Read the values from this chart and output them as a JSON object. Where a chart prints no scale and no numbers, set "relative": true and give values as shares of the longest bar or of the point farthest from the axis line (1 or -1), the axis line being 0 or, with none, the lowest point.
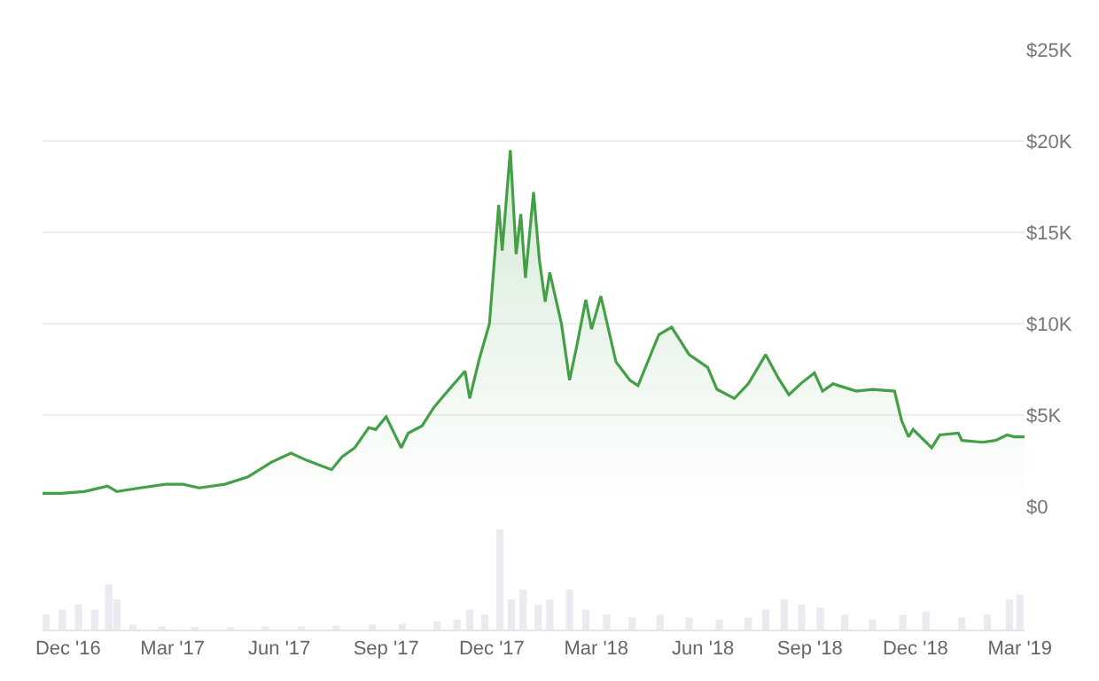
{
  "chart_data": [
    {
      "type": "area",
      "color": "#43a047",
      "tick_labels": "y",
      "grid": "y",
      "x": [
        "2016-11-09",
        "2016-11-25",
        "2016-12-15",
        "2017-01-04",
        "2017-01-12",
        "2017-02-01",
        "2017-02-23",
        "2017-03-10",
        "2017-03-24",
        "2017-04-15",
        "2017-05-05",
        "2017-05-25",
        "2017-06-11",
        "2017-06-25",
        "2017-07-16",
        "2017-07-25",
        "2017-08-05",
        "2017-08-17",
        "2017-08-23",
        "2017-09-01",
        "2017-09-14",
        "2017-09-20",
        "2017-10-02",
        "2017-10-12",
        "2017-10-20",
        "2017-11-08",
        "2017-11-12",
        "2017-11-20",
        "2017-11-29",
        "2017-12-07",
        "2017-12-10",
        "2017-12-17",
        "2017-12-22",
        "2017-12-26",
        "2017-12-30",
        "2018-01-06",
        "2018-01-11",
        "2018-01-16",
        "2018-01-20",
        "2018-01-30",
        "2018-02-06",
        "2018-02-12",
        "2018-02-20",
        "2018-02-25",
        "2018-03-05",
        "2018-03-18",
        "2018-03-30",
        "2018-04-06",
        "2018-04-24",
        "2018-05-05",
        "2018-05-20",
        "2018-06-05",
        "2018-06-13",
        "2018-06-28",
        "2018-07-10",
        "2018-07-25",
        "2018-08-05",
        "2018-08-14",
        "2018-08-24",
        "2018-09-05",
        "2018-09-12",
        "2018-09-21",
        "2018-10-11",
        "2018-10-25",
        "2018-11-13",
        "2018-11-19",
        "2018-11-25",
        "2018-11-29",
        "2018-12-15",
        "2018-12-22",
        "2019-01-07",
        "2019-01-10",
        "2019-01-28",
        "2019-02-08",
        "2019-02-18",
        "2019-02-24",
        "2019-03-05"
      ],
      "values": [
        700,
        700,
        800,
        1100,
        800,
        1000,
        1200,
        1200,
        1000,
        1200,
        1600,
        2400,
        2900,
        2500,
        2000,
        2700,
        3200,
        4300,
        4200,
        4900,
        3200,
        4000,
        4400,
        5400,
        6000,
        7400,
        5900,
        8000,
        10000,
        16500,
        14000,
        19500,
        13800,
        16000,
        12500,
        17200,
        13500,
        11200,
        12800,
        10000,
        6900,
        8700,
        11300,
        9700,
        11500,
        7900,
        6900,
        6600,
        9400,
        9800,
        8300,
        7600,
        6400,
        5900,
        6700,
        8300,
        7000,
        6100,
        6700,
        7300,
        6300,
        6700,
        6300,
        6400,
        6300,
        4700,
        3800,
        4200,
        3200,
        3900,
        4000,
        3600,
        3500,
        3600,
        3900,
        3800,
        3800
      ],
      "xlim": [
        "2016-11-09",
        "2019-03-05"
      ],
      "ylim": [
        0,
        25000
      ],
      "yticks": [
        {
          "value": 0,
          "label": "$0"
        },
        {
          "value": 5000,
          "label": "$5K"
        },
        {
          "value": 10000,
          "label": "$10K"
        },
        {
          "value": 15000,
          "label": "$15K"
        },
        {
          "value": 20000,
          "label": "$20K"
        },
        {
          "value": 25000,
          "label": "$25K"
        }
      ]
    },
    {
      "type": "bar",
      "relative": true,
      "color": "#e9ebf1",
      "tick_labels": "x",
      "x": [
        "2016-11-12",
        "2016-11-26",
        "2016-12-10",
        "2016-12-24",
        "2017-01-05",
        "2017-01-12",
        "2017-01-26",
        "2017-02-20",
        "2017-03-20",
        "2017-04-20",
        "2017-05-20",
        "2017-06-20",
        "2017-07-20",
        "2017-08-20",
        "2017-09-15",
        "2017-10-15",
        "2017-11-01",
        "2017-11-12",
        "2017-11-25",
        "2017-12-08",
        "2017-12-18",
        "2017-12-28",
        "2018-01-10",
        "2018-01-20",
        "2018-02-06",
        "2018-02-20",
        "2018-03-10",
        "2018-04-01",
        "2018-04-25",
        "2018-05-20",
        "2018-06-15",
        "2018-07-10",
        "2018-07-25",
        "2018-08-10",
        "2018-08-25",
        "2018-09-10",
        "2018-10-01",
        "2018-10-25",
        "2018-11-20",
        "2018-12-10",
        "2019-01-10",
        "2019-02-01",
        "2019-02-20",
        "2019-03-01"
      ],
      "values": [
        0.15,
        0.2,
        0.25,
        0.2,
        0.45,
        0.3,
        0.05,
        0.03,
        0.02,
        0.02,
        0.03,
        0.03,
        0.04,
        0.05,
        0.06,
        0.08,
        0.1,
        0.2,
        0.15,
        1,
        0.3,
        0.4,
        0.25,
        0.3,
        0.4,
        0.2,
        0.15,
        0.12,
        0.15,
        0.12,
        0.1,
        0.12,
        0.2,
        0.3,
        0.25,
        0.22,
        0.15,
        0.1,
        0.15,
        0.18,
        0.12,
        0.15,
        0.3,
        0.35
      ],
      "xlim": [
        "2016-11-09",
        "2019-03-05"
      ],
      "xticks": [
        {
          "value": "2016-12-01",
          "label": "Dec '16"
        },
        {
          "value": "2017-03-01",
          "label": "Mar '17"
        },
        {
          "value": "2017-06-01",
          "label": "Jun '17"
        },
        {
          "value": "2017-09-01",
          "label": "Sep '17"
        },
        {
          "value": "2017-12-01",
          "label": "Dec '17"
        },
        {
          "value": "2018-03-01",
          "label": "Mar '18"
        },
        {
          "value": "2018-06-01",
          "label": "Jun '18"
        },
        {
          "value": "2018-09-01",
          "label": "Sep '18"
        },
        {
          "value": "2018-12-01",
          "label": "Dec '18"
        },
        {
          "value": "2019-03-01",
          "label": "Mar '19"
        }
      ]
    }
  ]
}
